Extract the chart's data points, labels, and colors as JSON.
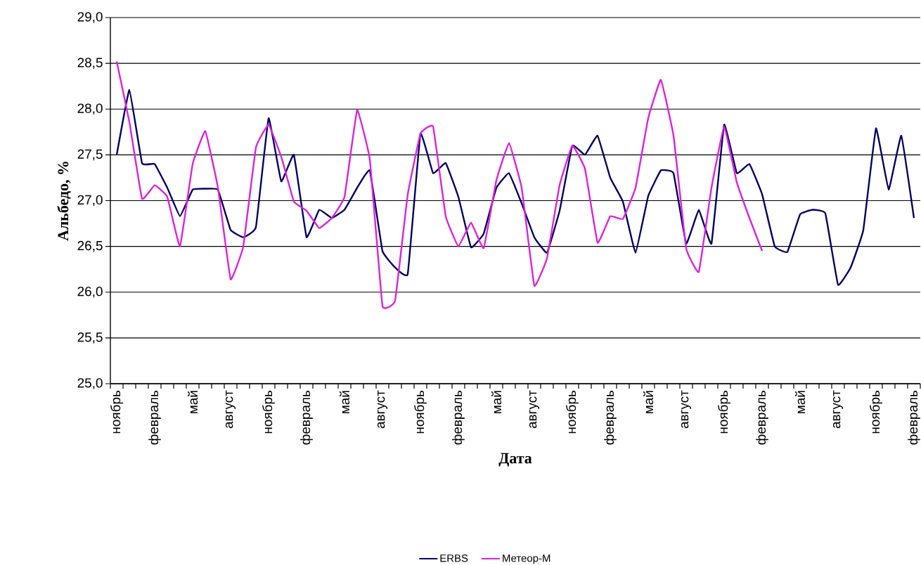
{
  "chart_data": {
    "type": "line",
    "xlabel": "Дата",
    "ylabel": "Альбедо, %",
    "categories": [
      "ноябрь",
      null,
      null,
      "февраль",
      null,
      null,
      "май",
      null,
      null,
      "август",
      null,
      null,
      "ноябрь",
      null,
      null,
      "февраль",
      null,
      null,
      "май",
      null,
      null,
      "август",
      null,
      null,
      "ноябрь",
      null,
      null,
      "февраль",
      null,
      null,
      "май",
      null,
      null,
      "август",
      null,
      null,
      "ноябрь",
      null,
      null,
      "февраль",
      null,
      null,
      "май",
      null,
      null,
      "август",
      null,
      null,
      "ноябрь",
      null,
      null,
      "февраль",
      null,
      null,
      "май",
      null,
      null,
      "август",
      null,
      null,
      "ноябрь",
      null,
      null,
      "февраль"
    ],
    "series": [
      {
        "name": "ERBS",
        "color": "#000066",
        "values": [
          27.5,
          28.21,
          27.41,
          27.4,
          27.14,
          26.83,
          27.12,
          27.13,
          27.12,
          26.68,
          26.6,
          26.71,
          27.9,
          27.21,
          27.5,
          26.6,
          26.9,
          26.81,
          26.9,
          27.14,
          27.33,
          26.45,
          26.27,
          26.2,
          27.73,
          27.3,
          27.41,
          27.04,
          26.49,
          26.64,
          27.14,
          27.3,
          26.97,
          26.6,
          26.43,
          26.89,
          27.6,
          27.5,
          27.71,
          27.25,
          26.99,
          26.43,
          27.05,
          27.33,
          27.3,
          26.53,
          26.9,
          26.53,
          27.83,
          27.3,
          27.4,
          27.07,
          26.5,
          26.44,
          26.85,
          26.9,
          26.86,
          26.08,
          26.27,
          26.68,
          27.79,
          27.12,
          27.71,
          26.81
        ]
      },
      {
        "name": "Метеор-М",
        "color": "#dd22dd",
        "values": [
          28.52,
          27.86,
          27.02,
          27.17,
          27.04,
          26.5,
          27.4,
          27.76,
          27.14,
          26.14,
          26.5,
          27.58,
          27.83,
          27.48,
          26.99,
          26.89,
          26.7,
          26.81,
          27.04,
          27.99,
          27.45,
          25.85,
          25.91,
          27.07,
          27.73,
          27.81,
          26.83,
          26.5,
          26.76,
          26.48,
          27.22,
          27.63,
          27.14,
          26.07,
          26.37,
          27.17,
          27.6,
          27.35,
          26.54,
          26.83,
          26.8,
          27.14,
          27.9,
          28.32,
          27.71,
          26.48,
          26.22,
          27.14,
          27.81,
          27.2,
          26.81,
          26.45,
          null,
          null,
          null,
          null,
          null,
          null,
          null,
          null,
          null,
          null,
          null,
          null
        ]
      }
    ],
    "ylim": [
      25,
      29
    ],
    "yticks": [
      {
        "value": 25,
        "label": "25,0"
      },
      {
        "value": 25.5,
        "label": "25,5"
      },
      {
        "value": 26,
        "label": "26,0"
      },
      {
        "value": 26.5,
        "label": "26,5"
      },
      {
        "value": 27,
        "label": "27,0"
      },
      {
        "value": 27.5,
        "label": "27,5"
      },
      {
        "value": 28,
        "label": "28,0"
      },
      {
        "value": 28.5,
        "label": "28,5"
      },
      {
        "value": 29,
        "label": "29,0"
      }
    ],
    "grid": "y",
    "legend": "bottom",
    "marker": "none",
    "line_style": "solid"
  }
}
